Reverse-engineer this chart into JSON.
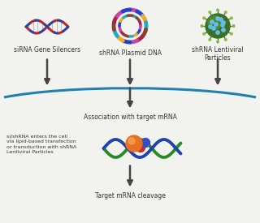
{
  "bg_color": "#f2f2ee",
  "labels": {
    "sirna": "siRNA Gene Silencers",
    "shrna_plasmid": "shRNA Plasmid DNA",
    "shrna_lentiviral": "shRNA Lentiviral\nParticles",
    "association": "Association with target mRNA",
    "cell_entry": "si/shRNA enters the cell\nvia lipid-based transfection\nor transduction with shRNA\nLentiviral Particles",
    "cleavage": "Target mRNA cleavage"
  },
  "arrow_color": "#454545",
  "arc_color": "#2080b0",
  "dna_green": "#2a8a2a",
  "dna_blue": "#2244aa",
  "risc_orange": "#e87020",
  "risc_red": "#c03020",
  "risc_blue": "#3060b0",
  "siRNA_red": "#cc2222",
  "siRNA_blue": "#2244aa",
  "plasmid_colors": [
    "#cc44aa",
    "#2244cc",
    "#eeaa22",
    "#22aacc",
    "#884422",
    "#aa2244"
  ],
  "lentiviral_green": "#3a7022",
  "lentiviral_dot": "#66bbee",
  "text_color": "#333333",
  "label_fontsize": 5.5,
  "label_fontsize_sm": 4.5
}
